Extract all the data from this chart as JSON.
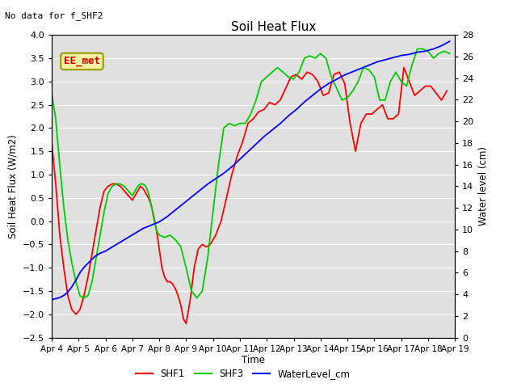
{
  "title": "Soil Heat Flux",
  "title_note": "No data for f_SHF2",
  "ylabel_left": "Soil Heat Flux (W/m2)",
  "ylabel_right": "Water level (cm)",
  "xlabel": "Time",
  "ylim_left": [
    -2.5,
    4.0
  ],
  "ylim_right": [
    0,
    28
  ],
  "legend_label": "EE_met",
  "background_color": "#ffffff",
  "plot_bg_color": "#e0e0e0",
  "grid_color": "#ffffff",
  "series": {
    "SHF1": {
      "color": "#ff0000",
      "x": [
        4.0,
        4.15,
        4.3,
        4.45,
        4.6,
        4.75,
        4.9,
        5.05,
        5.2,
        5.35,
        5.5,
        5.65,
        5.8,
        5.95,
        6.1,
        6.25,
        6.4,
        6.55,
        6.7,
        6.85,
        7.0,
        7.1,
        7.2,
        7.3,
        7.4,
        7.5,
        7.6,
        7.7,
        7.8,
        7.9,
        8.0,
        8.1,
        8.2,
        8.3,
        8.4,
        8.5,
        8.6,
        8.7,
        8.8,
        8.9,
        9.0,
        9.15,
        9.3,
        9.45,
        9.6,
        9.75,
        9.9,
        10.1,
        10.3,
        10.5,
        10.7,
        10.9,
        11.1,
        11.3,
        11.5,
        11.7,
        11.9,
        12.1,
        12.3,
        12.5,
        12.7,
        12.9,
        13.1,
        13.3,
        13.5,
        13.7,
        13.9,
        14.1,
        14.3,
        14.5,
        14.7,
        14.9,
        15.1,
        15.3,
        15.5,
        15.7,
        15.9,
        16.1,
        16.3,
        16.5,
        16.7,
        16.9,
        17.1,
        17.3,
        17.5,
        17.7,
        17.9,
        18.1,
        18.3,
        18.5,
        18.7
      ],
      "y": [
        1.7,
        0.8,
        -0.3,
        -1.0,
        -1.6,
        -1.9,
        -2.0,
        -1.9,
        -1.6,
        -1.2,
        -0.7,
        -0.2,
        0.3,
        0.65,
        0.75,
        0.8,
        0.8,
        0.75,
        0.65,
        0.55,
        0.45,
        0.55,
        0.65,
        0.75,
        0.7,
        0.6,
        0.5,
        0.35,
        0.1,
        -0.2,
        -0.6,
        -1.0,
        -1.2,
        -1.3,
        -1.3,
        -1.35,
        -1.45,
        -1.6,
        -1.8,
        -2.1,
        -2.2,
        -1.7,
        -1.0,
        -0.6,
        -0.5,
        -0.55,
        -0.5,
        -0.3,
        0.0,
        0.5,
        1.0,
        1.4,
        1.7,
        2.1,
        2.2,
        2.35,
        2.4,
        2.55,
        2.5,
        2.6,
        2.85,
        3.1,
        3.15,
        3.05,
        3.2,
        3.15,
        3.0,
        2.7,
        2.75,
        3.15,
        3.2,
        2.95,
        2.1,
        1.5,
        2.1,
        2.3,
        2.3,
        2.4,
        2.5,
        2.2,
        2.2,
        2.3,
        3.3,
        3.0,
        2.7,
        2.8,
        2.9,
        2.9,
        2.75,
        2.6,
        2.8
      ]
    },
    "SHF3": {
      "color": "#00cc00",
      "x": [
        4.0,
        4.15,
        4.3,
        4.45,
        4.6,
        4.75,
        4.9,
        5.05,
        5.2,
        5.35,
        5.5,
        5.65,
        5.8,
        5.95,
        6.1,
        6.25,
        6.4,
        6.55,
        6.7,
        6.85,
        7.0,
        7.1,
        7.2,
        7.3,
        7.4,
        7.5,
        7.6,
        7.7,
        7.8,
        7.9,
        8.0,
        8.2,
        8.4,
        8.6,
        8.8,
        9.0,
        9.2,
        9.4,
        9.6,
        9.8,
        10.0,
        10.2,
        10.4,
        10.6,
        10.8,
        11.0,
        11.2,
        11.4,
        11.6,
        11.8,
        12.0,
        12.2,
        12.4,
        12.6,
        12.8,
        13.0,
        13.2,
        13.4,
        13.6,
        13.8,
        14.0,
        14.2,
        14.4,
        14.6,
        14.8,
        15.0,
        15.2,
        15.4,
        15.6,
        15.8,
        16.0,
        16.2,
        16.4,
        16.6,
        16.8,
        17.0,
        17.2,
        17.4,
        17.6,
        17.8,
        18.0,
        18.2,
        18.4,
        18.6,
        18.8
      ],
      "y": [
        2.75,
        2.2,
        1.2,
        0.3,
        -0.4,
        -0.9,
        -1.3,
        -1.6,
        -1.65,
        -1.6,
        -1.3,
        -0.8,
        -0.3,
        0.2,
        0.6,
        0.75,
        0.8,
        0.8,
        0.75,
        0.65,
        0.55,
        0.65,
        0.75,
        0.8,
        0.8,
        0.75,
        0.6,
        0.35,
        0.05,
        -0.2,
        -0.3,
        -0.35,
        -0.3,
        -0.4,
        -0.55,
        -1.0,
        -1.5,
        -1.65,
        -1.5,
        -0.8,
        0.2,
        1.2,
        2.0,
        2.1,
        2.05,
        2.1,
        2.1,
        2.3,
        2.6,
        3.0,
        3.1,
        3.2,
        3.3,
        3.2,
        3.1,
        3.05,
        3.2,
        3.5,
        3.55,
        3.5,
        3.6,
        3.5,
        3.1,
        2.85,
        2.6,
        2.65,
        2.8,
        3.0,
        3.3,
        3.25,
        3.1,
        2.6,
        2.6,
        3.0,
        3.2,
        3.0,
        2.9,
        3.35,
        3.7,
        3.7,
        3.65,
        3.5,
        3.6,
        3.65,
        3.6
      ]
    },
    "WaterLevel_cm": {
      "color": "#0000ff",
      "x": [
        4.0,
        4.15,
        4.3,
        4.45,
        4.6,
        4.75,
        4.9,
        5.05,
        5.2,
        5.4,
        5.6,
        5.8,
        6.0,
        6.2,
        6.4,
        6.6,
        6.8,
        7.0,
        7.2,
        7.4,
        7.6,
        7.8,
        8.0,
        8.3,
        8.6,
        8.9,
        9.2,
        9.5,
        9.8,
        10.1,
        10.4,
        10.7,
        11.0,
        11.3,
        11.6,
        11.9,
        12.2,
        12.5,
        12.8,
        13.1,
        13.4,
        13.7,
        14.0,
        14.3,
        14.6,
        14.9,
        15.2,
        15.5,
        15.8,
        16.1,
        16.4,
        16.7,
        17.0,
        17.3,
        17.6,
        17.9,
        18.2,
        18.5,
        18.8
      ],
      "y_cm": [
        3.5,
        3.6,
        3.7,
        3.9,
        4.2,
        4.7,
        5.3,
        6.0,
        6.5,
        7.0,
        7.5,
        7.8,
        8.0,
        8.3,
        8.6,
        8.9,
        9.2,
        9.5,
        9.8,
        10.1,
        10.3,
        10.5,
        10.7,
        11.2,
        11.8,
        12.4,
        13.0,
        13.6,
        14.2,
        14.7,
        15.2,
        15.8,
        16.5,
        17.2,
        17.9,
        18.6,
        19.2,
        19.8,
        20.5,
        21.1,
        21.8,
        22.4,
        23.0,
        23.5,
        23.9,
        24.3,
        24.6,
        24.9,
        25.2,
        25.5,
        25.7,
        25.9,
        26.1,
        26.2,
        26.4,
        26.5,
        26.7,
        27.0,
        27.4
      ]
    }
  },
  "xticks": [
    4,
    5,
    6,
    7,
    8,
    9,
    10,
    11,
    12,
    13,
    14,
    15,
    16,
    17,
    18,
    19
  ],
  "xtick_labels": [
    "Apr 4",
    "Apr 5",
    "Apr 6",
    "Apr 7",
    "Apr 8",
    "Apr 9",
    "Apr 10",
    "Apr 11",
    "Apr 12",
    "Apr 13",
    "Apr 14",
    "Apr 15",
    "Apr 16",
    "Apr 17",
    "Apr 18",
    "Apr 19"
  ],
  "yticks_left": [
    -2.5,
    -2.0,
    -1.5,
    -1.0,
    -0.5,
    0.0,
    0.5,
    1.0,
    1.5,
    2.0,
    2.5,
    3.0,
    3.5,
    4.0
  ],
  "yticks_right": [
    0,
    2,
    4,
    6,
    8,
    10,
    12,
    14,
    16,
    18,
    20,
    22,
    24,
    26,
    28
  ],
  "line_width": 1.3
}
